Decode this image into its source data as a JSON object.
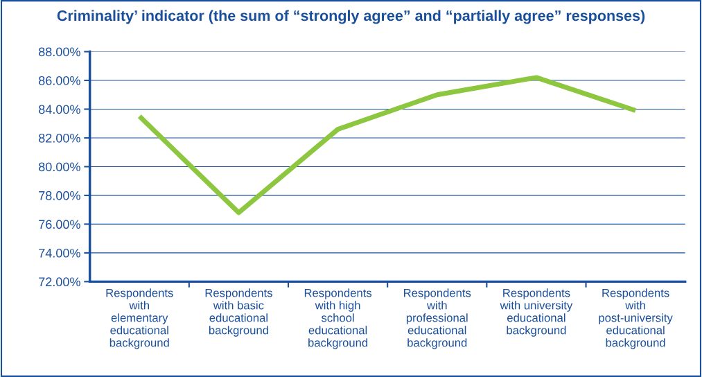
{
  "chart_data": {
    "type": "line",
    "title": "Criminality’ indicator (the sum of “strongly agree” and “partially agree” responses)",
    "categories": [
      "Respondents\nwith\nelementary\neducational\nbackground",
      "Respondents\nwith basic\neducational\nbackground",
      "Respondents\nwith high\nschool\neducational\nbackground",
      "Respondents\nwith\nprofessional\neducational\nbackground",
      "Respondents\nwith university\neducational\nbackground",
      "Respondents\nwith\npost-university\neducational\nbackground"
    ],
    "series": [
      {
        "color": "#8dc63f",
        "values": [
          83.5,
          76.8,
          82.6,
          85.0,
          86.2,
          83.9
        ]
      }
    ],
    "ylim": [
      72,
      88
    ],
    "yticks": [
      {
        "value": 72,
        "label": "72.00%"
      },
      {
        "value": 74,
        "label": "74.00%"
      },
      {
        "value": 76,
        "label": "76.00%"
      },
      {
        "value": 78,
        "label": "78.00%"
      },
      {
        "value": 80,
        "label": "80.00%"
      },
      {
        "value": 82,
        "label": "82.00%"
      },
      {
        "value": 84,
        "label": "84.00%"
      },
      {
        "value": 86,
        "label": "86.00%"
      },
      {
        "value": 88,
        "label": "88.00%"
      }
    ],
    "grid": "y",
    "marker": "none",
    "line_style": "solid"
  }
}
